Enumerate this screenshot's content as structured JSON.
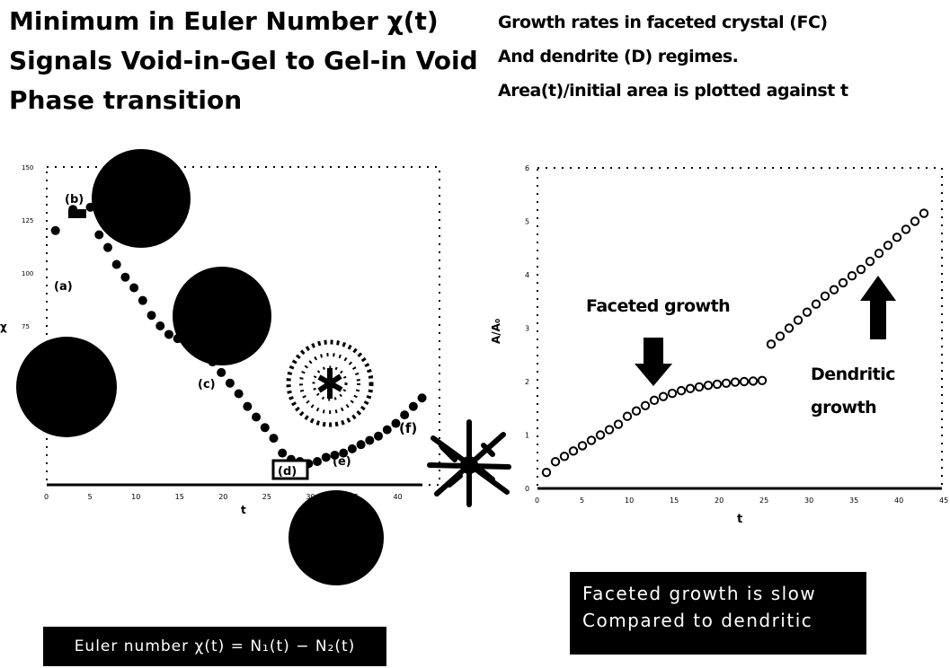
{
  "title_left": [
    "Minimum in Euler Number χ(t)",
    "Signals Void-in-Gel to Gel-in Void",
    "Phase transition"
  ],
  "title_right": [
    "Growth rates in faceted crystal (FC)",
    "And dendrite (D) regimes.",
    "Area(t)/initial area is plotted against  t"
  ],
  "caption_left": "Euler number χ(t) = N₁(t) − N₂(t)",
  "caption_right": [
    "Faceted growth is slow",
    "Compared to dendritic"
  ],
  "chart_data": [
    {
      "type": "scatter",
      "title": "",
      "xlabel": "t",
      "ylabel": "χ",
      "xlim": [
        0,
        45
      ],
      "ylim": [
        0,
        150
      ],
      "x_ticks": [
        "0",
        "5",
        "10",
        "15",
        "20",
        "25",
        "30",
        "35",
        "40"
      ],
      "x_ticks_values": [
        0,
        5,
        10,
        15,
        20,
        25,
        30,
        35,
        40
      ],
      "y_ticks": [
        "150",
        "125",
        "100",
        "75"
      ],
      "y_ticks_values": [
        150,
        125,
        100,
        75
      ],
      "grid": "dotted border",
      "annotations": [
        "(a)",
        "(b)",
        "(c)",
        "(d)",
        "(e)",
        "(f)"
      ],
      "series": [
        {
          "x": [
            1,
            3,
            5,
            6,
            7,
            8,
            9,
            10,
            11,
            12,
            13,
            14,
            15,
            16,
            17,
            18,
            19,
            20,
            21,
            22,
            23,
            24,
            25,
            26,
            27,
            28,
            29,
            30,
            31,
            32,
            33,
            34,
            35,
            36,
            37,
            38,
            39,
            40,
            41,
            42,
            43
          ],
          "y": [
            120,
            130,
            131,
            118,
            112,
            104,
            98,
            93,
            87,
            80,
            75,
            71,
            69,
            67,
            64,
            61,
            58,
            53,
            48,
            43,
            37,
            32,
            27,
            22,
            15,
            12,
            11,
            10,
            11,
            13,
            14,
            15,
            17,
            19,
            21,
            23,
            26,
            29,
            33,
            37,
            41
          ]
        }
      ]
    },
    {
      "type": "scatter",
      "title": "",
      "xlabel": "t",
      "ylabel": "A/A₀",
      "xlim": [
        0,
        45
      ],
      "ylim": [
        0,
        6
      ],
      "x_ticks": [
        "0",
        "5",
        "10",
        "15",
        "20",
        "25",
        "30",
        "35",
        "40",
        "45"
      ],
      "x_ticks_values": [
        0,
        5,
        10,
        15,
        20,
        25,
        30,
        35,
        40,
        45
      ],
      "y_ticks": [
        "0",
        "1",
        "2",
        "3",
        "4",
        "5",
        "6"
      ],
      "y_ticks_values": [
        0,
        1,
        2,
        3,
        4,
        5,
        6
      ],
      "grid": "dotted border",
      "annotations": [
        "Faceted growth",
        "Dendritic growth"
      ],
      "series": [
        {
          "x": [
            1,
            2,
            3,
            4,
            5,
            6,
            7,
            8,
            9,
            10,
            11,
            12,
            13,
            14,
            15,
            16,
            17,
            18,
            19,
            20,
            21,
            22,
            23,
            24,
            25,
            26,
            27,
            28,
            29,
            30,
            31,
            32,
            33,
            34,
            35,
            36,
            37,
            38,
            39,
            40,
            41,
            42,
            43
          ],
          "y": [
            0.3,
            0.5,
            0.6,
            0.7,
            0.8,
            0.9,
            1.0,
            1.1,
            1.2,
            1.35,
            1.45,
            1.55,
            1.65,
            1.72,
            1.78,
            1.83,
            1.87,
            1.9,
            1.93,
            1.95,
            1.97,
            1.99,
            2.0,
            2.01,
            2.02,
            2.7,
            2.85,
            3.0,
            3.15,
            3.3,
            3.45,
            3.6,
            3.72,
            3.85,
            3.98,
            4.1,
            4.25,
            4.4,
            4.55,
            4.7,
            4.85,
            5.0,
            5.15
          ]
        }
      ]
    }
  ]
}
